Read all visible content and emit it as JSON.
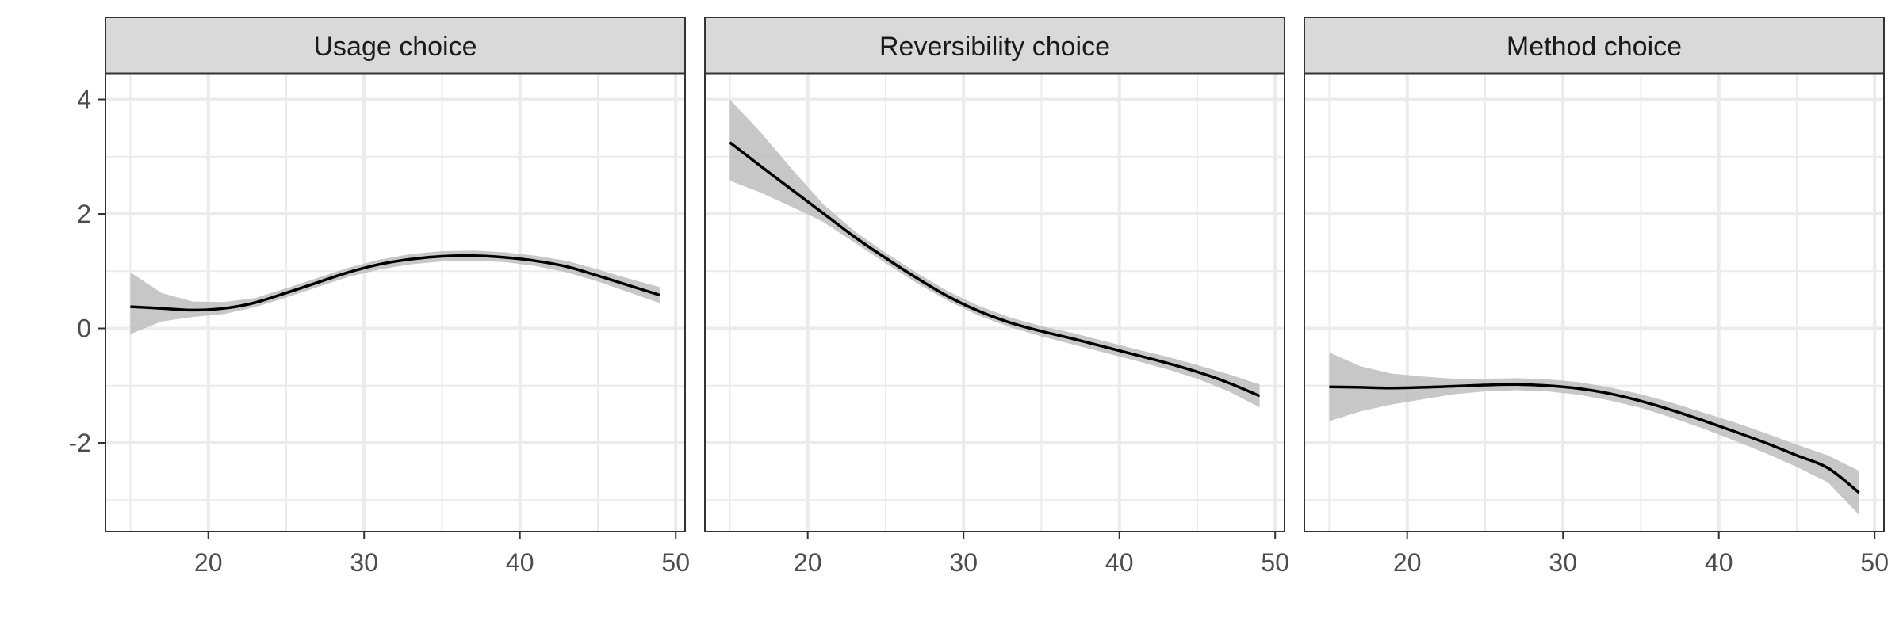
{
  "chart_data": {
    "type": "line",
    "x_range": [
      13.4,
      50.6
    ],
    "y_range": [
      -3.55,
      4.45
    ],
    "x_ticks": [
      20,
      30,
      40,
      50
    ],
    "y_ticks": [
      -2,
      0,
      2,
      4
    ],
    "x_tick_labels": [
      "20",
      "30",
      "40",
      "50"
    ],
    "y_tick_labels": [
      "-2",
      "0",
      "2",
      "4"
    ],
    "grid": "major and minor",
    "theme": "black and white with grey facet strips",
    "colors": {
      "line": "#000000",
      "ribbon": "#bdbdbd",
      "strip_fill": "#d9d9d9",
      "grid": "#ebebeb",
      "frame": "#333333"
    },
    "panels": [
      {
        "title": "Usage choice",
        "x": [
          15,
          17,
          19,
          21,
          23,
          25,
          27,
          29,
          31,
          33,
          35,
          37,
          39,
          41,
          43,
          45,
          47,
          49
        ],
        "y": [
          0.38,
          0.35,
          0.32,
          0.35,
          0.45,
          0.62,
          0.8,
          0.98,
          1.12,
          1.21,
          1.26,
          1.27,
          1.24,
          1.18,
          1.08,
          0.92,
          0.75,
          0.58
        ],
        "lower": [
          -0.1,
          0.12,
          0.2,
          0.25,
          0.37,
          0.54,
          0.72,
          0.9,
          1.03,
          1.12,
          1.17,
          1.18,
          1.16,
          1.09,
          0.98,
          0.82,
          0.63,
          0.44
        ],
        "upper": [
          0.98,
          0.62,
          0.47,
          0.46,
          0.53,
          0.7,
          0.88,
          1.06,
          1.2,
          1.3,
          1.35,
          1.36,
          1.33,
          1.27,
          1.18,
          1.03,
          0.87,
          0.72
        ]
      },
      {
        "title": "Reversibility choice",
        "x": [
          15,
          17,
          19,
          21,
          23,
          25,
          27,
          29,
          31,
          33,
          35,
          37,
          39,
          41,
          43,
          45,
          47,
          49
        ],
        "y": [
          3.25,
          2.83,
          2.42,
          2.01,
          1.6,
          1.23,
          0.88,
          0.56,
          0.3,
          0.1,
          -0.05,
          -0.18,
          -0.32,
          -0.46,
          -0.6,
          -0.76,
          -0.95,
          -1.18
        ],
        "lower": [
          2.58,
          2.37,
          2.12,
          1.86,
          1.5,
          1.14,
          0.79,
          0.48,
          0.22,
          0.02,
          -0.14,
          -0.28,
          -0.42,
          -0.56,
          -0.71,
          -0.88,
          -1.1,
          -1.38
        ],
        "upper": [
          4.0,
          3.42,
          2.78,
          2.17,
          1.7,
          1.32,
          0.97,
          0.65,
          0.39,
          0.19,
          0.04,
          -0.08,
          -0.22,
          -0.36,
          -0.49,
          -0.64,
          -0.8,
          -0.98
        ]
      },
      {
        "title": "Method choice",
        "x": [
          15,
          17,
          19,
          21,
          23,
          25,
          27,
          29,
          31,
          33,
          35,
          37,
          39,
          41,
          43,
          45,
          47,
          49
        ],
        "y": [
          -1.02,
          -1.03,
          -1.04,
          -1.03,
          -1.01,
          -0.99,
          -0.98,
          -1.0,
          -1.05,
          -1.14,
          -1.27,
          -1.43,
          -1.61,
          -1.8,
          -2.0,
          -2.22,
          -2.44,
          -2.87
        ],
        "lower": [
          -1.62,
          -1.45,
          -1.33,
          -1.24,
          -1.15,
          -1.1,
          -1.08,
          -1.1,
          -1.16,
          -1.26,
          -1.39,
          -1.56,
          -1.75,
          -1.96,
          -2.18,
          -2.42,
          -2.69,
          -3.26
        ],
        "upper": [
          -0.42,
          -0.66,
          -0.79,
          -0.84,
          -0.88,
          -0.88,
          -0.87,
          -0.89,
          -0.94,
          -1.03,
          -1.15,
          -1.3,
          -1.47,
          -1.64,
          -1.83,
          -2.03,
          -2.22,
          -2.49
        ]
      }
    ]
  }
}
